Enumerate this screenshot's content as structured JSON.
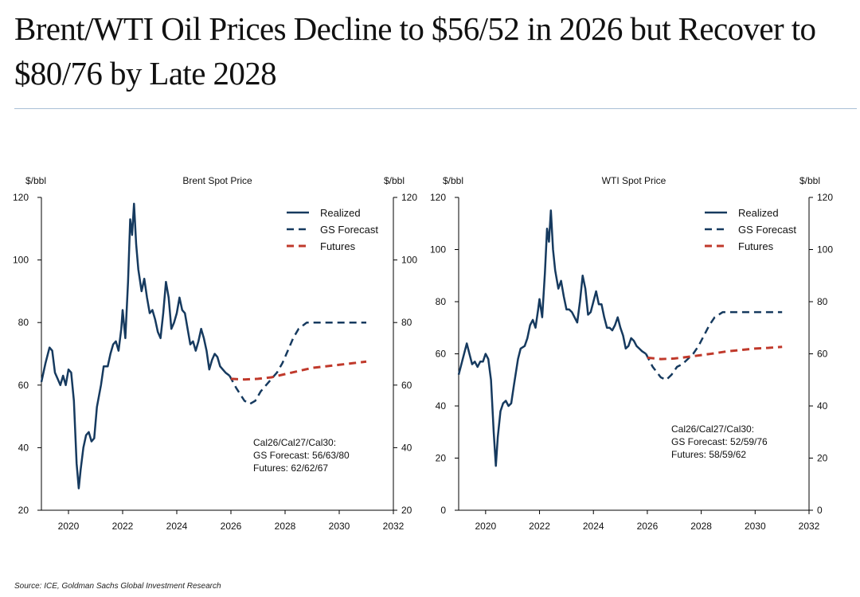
{
  "page": {
    "title": "Brent/WTI Oil Prices Decline to $56/52 in 2026 but Recover to $80/76 by Late 2028",
    "source": "Source: ICE, Goldman Sachs Global Investment Research"
  },
  "colors": {
    "realized": "#163a5f",
    "forecast": "#163a5f",
    "futures": "#c0392b",
    "axis": "#000000"
  },
  "chart_data": [
    {
      "type": "line",
      "title": "Brent Spot Price",
      "ylabel_left": "$/bbl",
      "ylabel_right": "$/bbl",
      "xlim": [
        2019,
        2032
      ],
      "ylim": [
        20,
        120
      ],
      "ylim_right": [
        20,
        120
      ],
      "xticks": [
        2020,
        2022,
        2024,
        2026,
        2028,
        2030,
        2032
      ],
      "yticks": [
        20,
        40,
        60,
        80,
        100,
        120
      ],
      "yticks_right": [
        20,
        40,
        60,
        80,
        100,
        120
      ],
      "legend": [
        "Realized",
        "GS Forecast",
        "Futures"
      ],
      "annotation": [
        "Cal26/Cal27/Cal30:",
        "GS Forecast: 56/63/80",
        "Futures: 62/62/67"
      ],
      "series": [
        {
          "name": "Realized",
          "style": "solid",
          "x": [
            2019.0,
            2019.15,
            2019.3,
            2019.4,
            2019.5,
            2019.6,
            2019.7,
            2019.8,
            2019.9,
            2020.0,
            2020.1,
            2020.2,
            2020.3,
            2020.38,
            2020.45,
            2020.55,
            2020.65,
            2020.75,
            2020.85,
            2020.95,
            2021.05,
            2021.2,
            2021.3,
            2021.45,
            2021.55,
            2021.65,
            2021.75,
            2021.85,
            2021.95,
            2022.0,
            2022.1,
            2022.2,
            2022.28,
            2022.35,
            2022.42,
            2022.5,
            2022.58,
            2022.7,
            2022.8,
            2022.9,
            2023.0,
            2023.1,
            2023.2,
            2023.3,
            2023.4,
            2023.5,
            2023.6,
            2023.7,
            2023.8,
            2023.9,
            2024.0,
            2024.1,
            2024.2,
            2024.3,
            2024.4,
            2024.5,
            2024.6,
            2024.7,
            2024.8,
            2024.9,
            2025.0,
            2025.1,
            2025.2,
            2025.3,
            2025.4,
            2025.5,
            2025.6,
            2025.7,
            2025.8,
            2025.95
          ],
          "y": [
            61,
            67,
            72,
            71,
            64,
            62,
            60,
            63,
            60,
            65,
            64,
            55,
            35,
            27,
            33,
            40,
            44,
            45,
            42,
            43,
            53,
            60,
            66,
            66,
            70,
            73,
            74,
            71,
            78,
            84,
            75,
            93,
            113,
            108,
            118,
            105,
            97,
            90,
            94,
            88,
            83,
            84,
            81,
            77,
            75,
            83,
            93,
            88,
            78,
            80,
            83,
            88,
            84,
            83,
            78,
            73,
            74,
            71,
            74,
            78,
            75,
            71,
            65,
            68,
            70,
            69,
            66,
            65,
            64,
            63
          ]
        },
        {
          "name": "GS Forecast",
          "style": "dashed",
          "x": [
            2025.95,
            2026.2,
            2026.5,
            2026.7,
            2026.9,
            2027.1,
            2027.3,
            2027.5,
            2027.7,
            2027.9,
            2028.1,
            2028.3,
            2028.5,
            2028.8,
            2029.0,
            2029.5,
            2030.0,
            2030.5,
            2031.0
          ],
          "y": [
            63,
            59,
            55,
            54,
            55,
            58,
            60,
            62,
            64,
            67,
            71,
            75,
            78,
            80,
            80,
            80,
            80,
            80,
            80
          ]
        },
        {
          "name": "Futures",
          "style": "dashed",
          "x": [
            2026.0,
            2026.5,
            2027.0,
            2027.5,
            2028.0,
            2028.5,
            2029.0,
            2029.5,
            2030.0,
            2030.5,
            2031.0
          ],
          "y": [
            62,
            61.8,
            62,
            62.5,
            63.5,
            64.5,
            65.5,
            66,
            66.5,
            67,
            67.5
          ]
        }
      ]
    },
    {
      "type": "line",
      "title": "WTI Spot Price",
      "ylabel_left": "$/bbl",
      "ylabel_right": "$/bbl",
      "xlim": [
        2019,
        2032
      ],
      "ylim": [
        0,
        120
      ],
      "ylim_right": [
        0,
        120
      ],
      "xticks": [
        2020,
        2022,
        2024,
        2026,
        2028,
        2030,
        2032
      ],
      "yticks": [
        0,
        20,
        40,
        60,
        80,
        100,
        120
      ],
      "yticks_right": [
        0,
        20,
        40,
        60,
        80,
        100,
        120
      ],
      "legend": [
        "Realized",
        "GS Forecast",
        "Futures"
      ],
      "annotation": [
        "Cal26/Cal27/Cal30:",
        "GS Forecast: 52/59/76",
        "Futures: 58/59/62"
      ],
      "series": [
        {
          "name": "Realized",
          "style": "solid",
          "x": [
            2019.0,
            2019.15,
            2019.3,
            2019.4,
            2019.5,
            2019.6,
            2019.7,
            2019.8,
            2019.9,
            2020.0,
            2020.1,
            2020.2,
            2020.3,
            2020.38,
            2020.45,
            2020.55,
            2020.65,
            2020.75,
            2020.85,
            2020.95,
            2021.05,
            2021.2,
            2021.3,
            2021.45,
            2021.55,
            2021.65,
            2021.75,
            2021.85,
            2021.95,
            2022.0,
            2022.1,
            2022.2,
            2022.28,
            2022.35,
            2022.42,
            2022.5,
            2022.58,
            2022.7,
            2022.8,
            2022.9,
            2023.0,
            2023.1,
            2023.2,
            2023.3,
            2023.4,
            2023.5,
            2023.6,
            2023.7,
            2023.8,
            2023.9,
            2024.0,
            2024.1,
            2024.2,
            2024.3,
            2024.4,
            2024.5,
            2024.6,
            2024.7,
            2024.8,
            2024.9,
            2025.0,
            2025.1,
            2025.2,
            2025.3,
            2025.4,
            2025.5,
            2025.6,
            2025.7,
            2025.8,
            2025.95
          ],
          "y": [
            52,
            58,
            64,
            60,
            56,
            57,
            55,
            57,
            57,
            60,
            58,
            50,
            30,
            17,
            28,
            38,
            41,
            42,
            40,
            41,
            48,
            58,
            62,
            63,
            66,
            71,
            73,
            70,
            77,
            81,
            74,
            91,
            108,
            103,
            115,
            100,
            92,
            85,
            88,
            82,
            77,
            77,
            76,
            74,
            72,
            80,
            90,
            85,
            75,
            76,
            80,
            84,
            79,
            79,
            74,
            70,
            70,
            69,
            71,
            74,
            70,
            67,
            62,
            63,
            66,
            65,
            63,
            62,
            61,
            60
          ]
        },
        {
          "name": "GS Forecast",
          "style": "dashed",
          "x": [
            2025.95,
            2026.2,
            2026.5,
            2026.7,
            2026.9,
            2027.1,
            2027.3,
            2027.5,
            2027.7,
            2027.9,
            2028.1,
            2028.3,
            2028.5,
            2028.8,
            2029.0,
            2029.5,
            2030.0,
            2030.5,
            2031.0
          ],
          "y": [
            60,
            55,
            51,
            50,
            52,
            55,
            56,
            58,
            60,
            63,
            67,
            71,
            74,
            76,
            76,
            76,
            76,
            76,
            76
          ]
        },
        {
          "name": "Futures",
          "style": "dashed",
          "x": [
            2026.0,
            2026.5,
            2027.0,
            2027.5,
            2028.0,
            2028.5,
            2029.0,
            2029.5,
            2030.0,
            2030.5,
            2031.0
          ],
          "y": [
            58.5,
            58,
            58.2,
            58.8,
            59.5,
            60.2,
            61,
            61.5,
            62,
            62.3,
            62.7
          ]
        }
      ]
    }
  ]
}
